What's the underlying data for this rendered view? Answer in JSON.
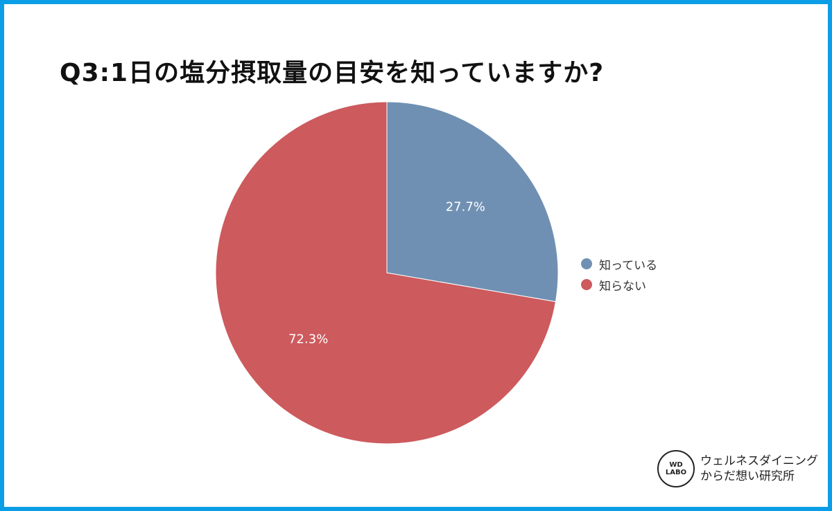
{
  "chart_data": {
    "type": "pie",
    "title": "Q3:1日の塩分摂取量の目安を知っていますか?",
    "categories": [
      "知っている",
      "知らない"
    ],
    "values": [
      27.7,
      72.3
    ],
    "labels": [
      "27.7%",
      "72.3%"
    ],
    "colors": [
      "#7090b3",
      "#cd5a5d"
    ],
    "legend_position": "right"
  },
  "logo": {
    "mark_line1": "WD",
    "mark_line2": "LABO",
    "line1": "ウェルネスダイニング",
    "line2": "からだ想い研究所"
  }
}
